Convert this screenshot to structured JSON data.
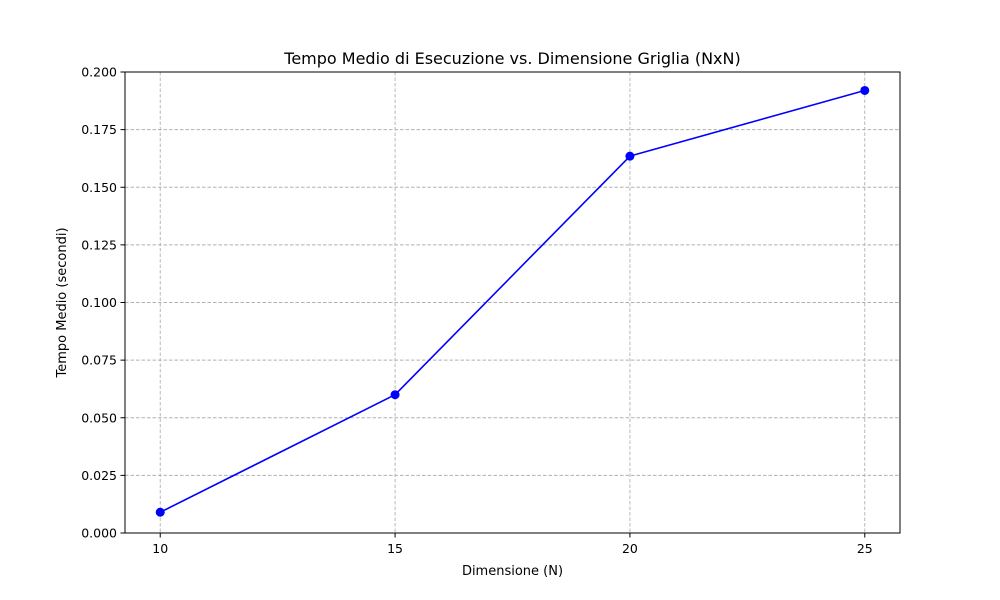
{
  "chart_data": {
    "type": "line",
    "title": "Tempo Medio di Esecuzione vs. Dimensione Griglia (NxN)",
    "xlabel": "Dimensione (N)",
    "ylabel": "Tempo Medio (secondi)",
    "x": [
      10,
      15,
      20,
      25
    ],
    "series": [
      {
        "values": [
          0.009,
          0.06,
          0.1635,
          0.192
        ],
        "color": "#0000ff",
        "marker": "circle"
      }
    ],
    "xlim": [
      9.25,
      25.75
    ],
    "ylim": [
      0,
      0.2
    ],
    "xticks": [
      10,
      15,
      20,
      25
    ],
    "xtick_labels": [
      "10",
      "15",
      "20",
      "25"
    ],
    "yticks": [
      0,
      0.025,
      0.05,
      0.075,
      0.1,
      0.125,
      0.15,
      0.175,
      0.2
    ],
    "ytick_labels": [
      "0.000",
      "0.025",
      "0.050",
      "0.075",
      "0.100",
      "0.125",
      "0.150",
      "0.175",
      "0.200"
    ],
    "grid": true,
    "grid_style": "dashed",
    "grid_color": "#b0b0b0",
    "legend": "none"
  }
}
